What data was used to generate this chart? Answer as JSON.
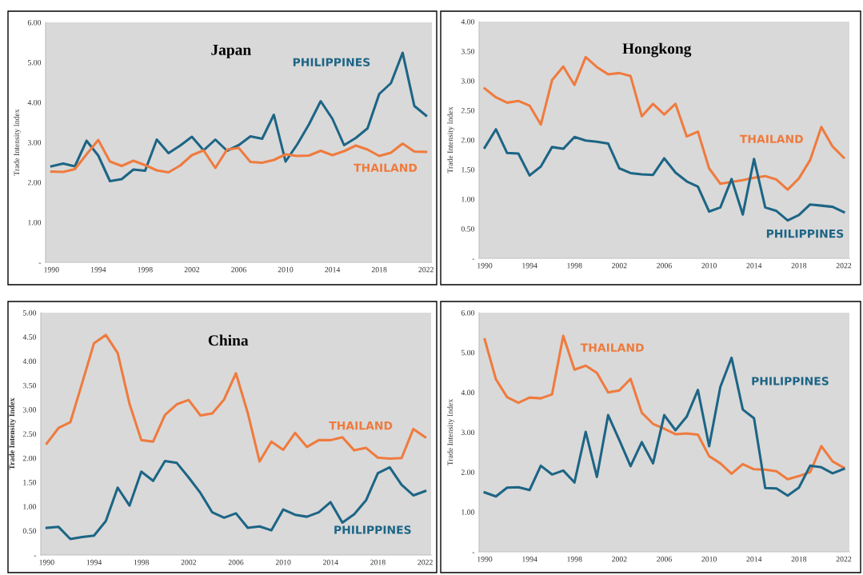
{
  "chart_data": [
    {
      "type": "line",
      "title": "Japan",
      "ylabel": "Trade Intensity Index",
      "x": [
        1990,
        1991,
        1992,
        1993,
        1994,
        1995,
        1996,
        1997,
        1998,
        1999,
        2000,
        2001,
        2002,
        2003,
        2004,
        2005,
        2006,
        2007,
        2008,
        2009,
        2010,
        2011,
        2012,
        2013,
        2014,
        2015,
        2016,
        2017,
        2018,
        2019,
        2020,
        2021,
        2022
      ],
      "xlim": [
        1989.5,
        2022.5
      ],
      "xticks": [
        1990,
        1994,
        1998,
        2002,
        2006,
        2010,
        2014,
        2018,
        2022
      ],
      "ylim": [
        0,
        6
      ],
      "yticks": [
        {
          "value": 0,
          "label": "-"
        },
        {
          "value": 1,
          "label": "1.00"
        },
        {
          "value": 2,
          "label": "2.00"
        },
        {
          "value": 3,
          "label": "3.00"
        },
        {
          "value": 4,
          "label": "4.00"
        },
        {
          "value": 5,
          "label": "5.00"
        },
        {
          "value": 6,
          "label": "6.00"
        }
      ],
      "series": [
        {
          "name": "PHILIPPINES",
          "color": "#1d6585",
          "values": [
            2.4,
            2.47,
            2.4,
            3.04,
            2.67,
            2.03,
            2.08,
            2.32,
            2.29,
            3.07,
            2.73,
            2.92,
            3.14,
            2.8,
            3.07,
            2.79,
            2.93,
            3.15,
            3.09,
            3.69,
            2.52,
            2.95,
            3.45,
            4.03,
            3.59,
            2.93,
            3.11,
            3.35,
            4.21,
            4.48,
            5.24,
            3.91,
            3.67
          ]
        },
        {
          "name": "THAILAND",
          "color": "#ef7b3e",
          "values": [
            2.27,
            2.26,
            2.33,
            2.7,
            3.06,
            2.52,
            2.41,
            2.54,
            2.43,
            2.3,
            2.25,
            2.42,
            2.68,
            2.8,
            2.36,
            2.82,
            2.86,
            2.51,
            2.49,
            2.56,
            2.7,
            2.66,
            2.67,
            2.79,
            2.68,
            2.78,
            2.92,
            2.82,
            2.66,
            2.74,
            2.97,
            2.77,
            2.76
          ]
        }
      ]
    },
    {
      "type": "line",
      "title": "Hongkong",
      "ylabel": "Trade Intensity Index",
      "x": [
        1990,
        1991,
        1992,
        1993,
        1994,
        1995,
        1996,
        1997,
        1998,
        1999,
        2000,
        2001,
        2002,
        2003,
        2004,
        2005,
        2006,
        2007,
        2008,
        2009,
        2010,
        2011,
        2012,
        2013,
        2014,
        2015,
        2016,
        2017,
        2018,
        2019,
        2020,
        2021,
        2022
      ],
      "xlim": [
        1989.5,
        2022.5
      ],
      "xticks": [
        1990,
        1994,
        1998,
        2002,
        2006,
        2010,
        2014,
        2018,
        2022
      ],
      "ylim": [
        0,
        4
      ],
      "yticks": [
        {
          "value": 0,
          "label": "-"
        },
        {
          "value": 0.5,
          "label": "0.50"
        },
        {
          "value": 1,
          "label": "1.00"
        },
        {
          "value": 1.5,
          "label": "1.50"
        },
        {
          "value": 2,
          "label": "2.00"
        },
        {
          "value": 2.5,
          "label": "2.50"
        },
        {
          "value": 3,
          "label": "3.00"
        },
        {
          "value": 3.5,
          "label": "3.50"
        },
        {
          "value": 4,
          "label": "4.00"
        }
      ],
      "series": [
        {
          "name": "THAILAND",
          "color": "#ef7b3e",
          "values": [
            2.87,
            2.72,
            2.63,
            2.66,
            2.58,
            2.26,
            3.01,
            3.24,
            2.93,
            3.4,
            3.23,
            3.11,
            3.13,
            3.08,
            2.4,
            2.61,
            2.43,
            2.61,
            2.06,
            2.14,
            1.52,
            1.26,
            1.29,
            1.32,
            1.36,
            1.39,
            1.33,
            1.16,
            1.35,
            1.66,
            2.22,
            1.89,
            1.7
          ]
        },
        {
          "name": "PHILIPPINES",
          "color": "#1d6585",
          "values": [
            1.87,
            2.18,
            1.78,
            1.77,
            1.4,
            1.55,
            1.88,
            1.85,
            2.05,
            1.99,
            1.97,
            1.94,
            1.52,
            1.44,
            1.42,
            1.41,
            1.69,
            1.45,
            1.3,
            1.21,
            0.79,
            0.86,
            1.34,
            0.74,
            1.68,
            0.86,
            0.8,
            0.64,
            0.73,
            0.91,
            0.89,
            0.87,
            0.78
          ]
        }
      ]
    },
    {
      "type": "line",
      "title": "China",
      "ylabel": "Trade Intensity Index",
      "x": [
        1990,
        1991,
        1992,
        1993,
        1994,
        1995,
        1996,
        1997,
        1998,
        1999,
        2000,
        2001,
        2002,
        2003,
        2004,
        2005,
        2006,
        2007,
        2008,
        2009,
        2010,
        2011,
        2012,
        2013,
        2014,
        2015,
        2016,
        2017,
        2018,
        2019,
        2020,
        2021,
        2022
      ],
      "xlim": [
        1989.5,
        2022.5
      ],
      "xticks": [
        1990,
        1994,
        1998,
        2002,
        2006,
        2010,
        2014,
        2018,
        2022
      ],
      "ylim": [
        0,
        5
      ],
      "yticks": [
        {
          "value": 0,
          "label": "-"
        },
        {
          "value": 0.5,
          "label": "0.50"
        },
        {
          "value": 1,
          "label": "1.00"
        },
        {
          "value": 1.5,
          "label": "1.50"
        },
        {
          "value": 2,
          "label": "2.00"
        },
        {
          "value": 2.5,
          "label": "2.50"
        },
        {
          "value": 3,
          "label": "3.00"
        },
        {
          "value": 3.5,
          "label": "3.50"
        },
        {
          "value": 4,
          "label": "4.00"
        },
        {
          "value": 4.5,
          "label": "4.50"
        },
        {
          "value": 5,
          "label": "5.00"
        }
      ],
      "series": [
        {
          "name": "THAILAND",
          "color": "#ef7b3e",
          "values": [
            2.3,
            2.62,
            2.74,
            3.55,
            4.37,
            4.54,
            4.17,
            3.12,
            2.37,
            2.34,
            2.89,
            3.11,
            3.2,
            2.88,
            2.92,
            3.21,
            3.75,
            2.93,
            1.93,
            2.34,
            2.17,
            2.52,
            2.23,
            2.37,
            2.37,
            2.43,
            2.16,
            2.21,
            2.01,
            1.99,
            2.0,
            2.6,
            2.43
          ]
        },
        {
          "name": "PHILIPPINES",
          "color": "#1d6585",
          "values": [
            0.56,
            0.58,
            0.33,
            0.37,
            0.4,
            0.7,
            1.39,
            1.02,
            1.72,
            1.53,
            1.94,
            1.9,
            1.6,
            1.28,
            0.88,
            0.77,
            0.86,
            0.56,
            0.59,
            0.51,
            0.94,
            0.83,
            0.79,
            0.88,
            1.09,
            0.67,
            0.84,
            1.13,
            1.69,
            1.81,
            1.45,
            1.23,
            1.32
          ]
        }
      ]
    },
    {
      "type": "line",
      "ylabel": "Trade Intensity Index",
      "x": [
        1990,
        1991,
        1992,
        1993,
        1994,
        1995,
        1996,
        1997,
        1998,
        1999,
        2000,
        2001,
        2002,
        2003,
        2004,
        2005,
        2006,
        2007,
        2008,
        2009,
        2010,
        2011,
        2012,
        2013,
        2014,
        2015,
        2016,
        2017,
        2018,
        2019,
        2020,
        2021,
        2022
      ],
      "xlim": [
        1989.5,
        2022.5
      ],
      "xticks": [
        1990,
        1994,
        1998,
        2002,
        2006,
        2010,
        2014,
        2018,
        2022
      ],
      "ylim": [
        0,
        6
      ],
      "yticks": [
        {
          "value": 0,
          "label": "-"
        },
        {
          "value": 1,
          "label": "1.00"
        },
        {
          "value": 2,
          "label": "2.00"
        },
        {
          "value": 3,
          "label": "3.00"
        },
        {
          "value": 4,
          "label": "4.00"
        },
        {
          "value": 5,
          "label": "5.00"
        },
        {
          "value": 6,
          "label": "6.00"
        }
      ],
      "series": [
        {
          "name": "THAILAND",
          "color": "#ef7b3e",
          "values": [
            5.33,
            4.33,
            3.88,
            3.74,
            3.87,
            3.85,
            3.95,
            5.42,
            4.57,
            4.67,
            4.49,
            4.0,
            4.05,
            4.34,
            3.49,
            3.21,
            3.09,
            2.95,
            2.97,
            2.94,
            2.4,
            2.22,
            1.96,
            2.2,
            2.07,
            2.06,
            2.02,
            1.82,
            1.9,
            2.0,
            2.65,
            2.27,
            2.11
          ]
        },
        {
          "name": "PHILIPPINES",
          "color": "#1d6585",
          "values": [
            1.49,
            1.39,
            1.61,
            1.62,
            1.55,
            2.16,
            1.94,
            2.04,
            1.74,
            3.01,
            1.88,
            3.43,
            2.8,
            2.15,
            2.75,
            2.22,
            3.43,
            3.05,
            3.39,
            4.06,
            2.65,
            4.14,
            4.87,
            3.57,
            3.35,
            1.6,
            1.59,
            1.41,
            1.61,
            2.16,
            2.12,
            1.97,
            2.08
          ]
        }
      ]
    }
  ]
}
